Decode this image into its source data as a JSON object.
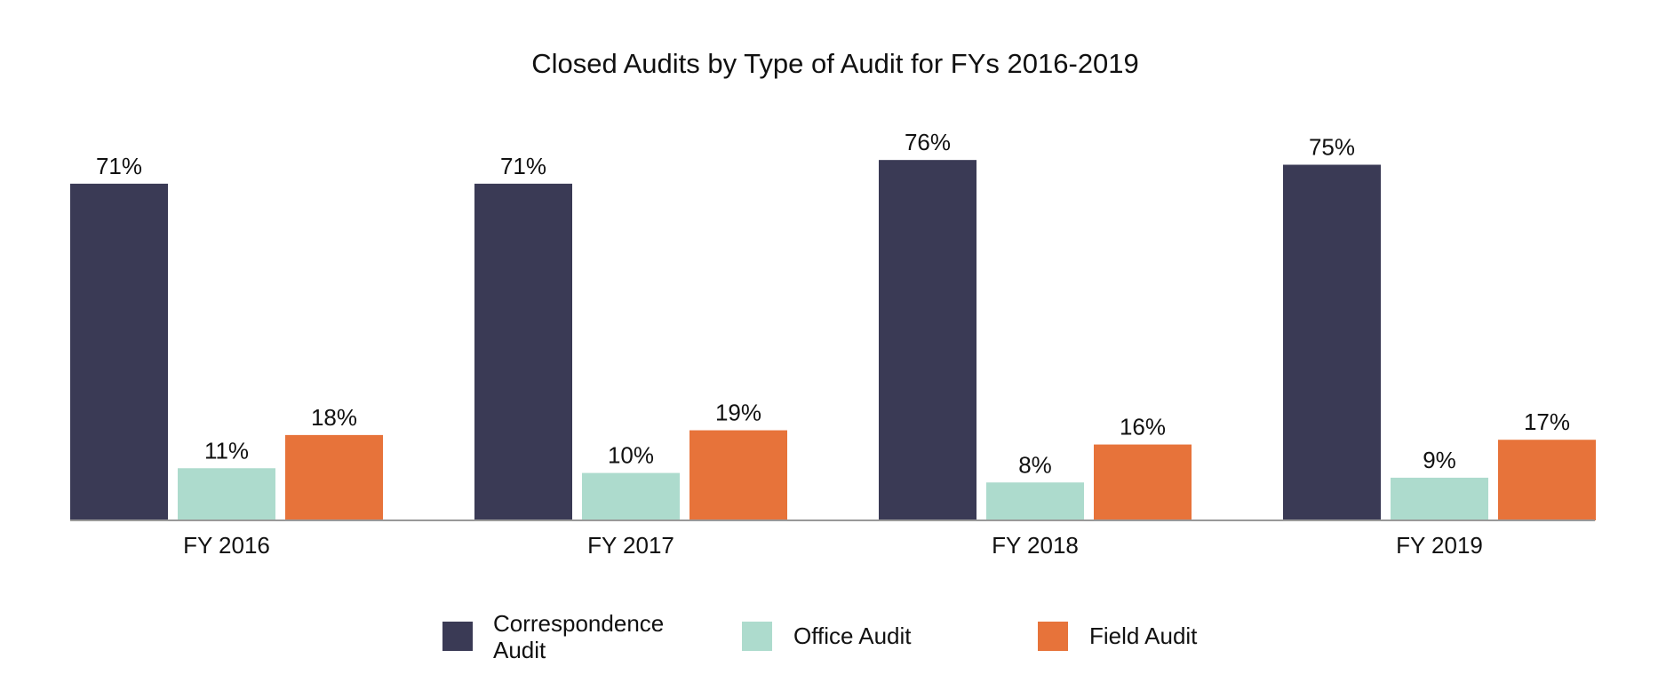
{
  "chart_data": {
    "type": "bar",
    "title": "Closed Audits by Type of Audit for FYs 2016-2019",
    "xlabel": "",
    "ylabel": "",
    "categories": [
      "FY 2016",
      "FY 2017",
      "FY 2018",
      "FY 2019"
    ],
    "series": [
      {
        "name": "Correspondence Audit",
        "values": [
          71,
          71,
          76,
          75
        ],
        "labels": [
          "71%",
          "71%",
          "76%",
          "75%"
        ],
        "color": "#3a3a55"
      },
      {
        "name": "Office Audit",
        "values": [
          11,
          10,
          8,
          9
        ],
        "labels": [
          "11%",
          "10%",
          "8%",
          "9%"
        ],
        "color": "#addbcd"
      },
      {
        "name": "Field Audit",
        "values": [
          18,
          19,
          16,
          17
        ],
        "labels": [
          "18%",
          "19%",
          "16%",
          "17%"
        ],
        "color": "#e7733a"
      }
    ],
    "ylim": [
      0,
      76
    ],
    "grid": false,
    "legend_position": "bottom",
    "legend_lines": [
      [
        "Correspondence",
        "Audit"
      ],
      [
        "Office Audit"
      ],
      [
        "Field Audit"
      ]
    ]
  }
}
